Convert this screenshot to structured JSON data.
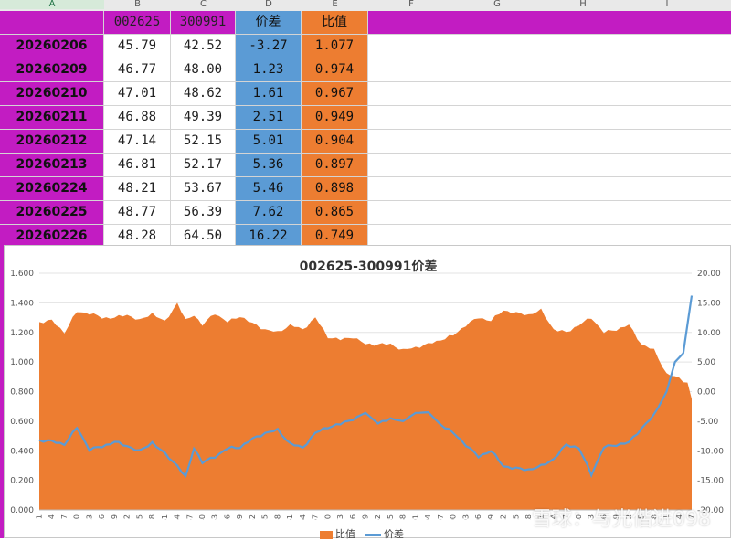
{
  "columns": [
    "A",
    "B",
    "C",
    "D",
    "E",
    "F",
    "G",
    "H",
    "I"
  ],
  "header": {
    "a": "",
    "b": "002625",
    "c": "300991",
    "d": "价差",
    "e": "比值"
  },
  "rows": [
    {
      "date": "20260206",
      "b": "45.79",
      "c": "42.52",
      "d": "-3.27",
      "e": "1.077"
    },
    {
      "date": "20260209",
      "b": "46.77",
      "c": "48.00",
      "d": "1.23",
      "e": "0.974"
    },
    {
      "date": "20260210",
      "b": "47.01",
      "c": "48.62",
      "d": "1.61",
      "e": "0.967"
    },
    {
      "date": "20260211",
      "b": "46.88",
      "c": "49.39",
      "d": "2.51",
      "e": "0.949"
    },
    {
      "date": "20260212",
      "b": "47.14",
      "c": "52.15",
      "d": "5.01",
      "e": "0.904"
    },
    {
      "date": "20260213",
      "b": "46.81",
      "c": "52.17",
      "d": "5.36",
      "e": "0.897"
    },
    {
      "date": "20260224",
      "b": "48.21",
      "c": "53.67",
      "d": "5.46",
      "e": "0.898"
    },
    {
      "date": "20260225",
      "b": "48.77",
      "c": "56.39",
      "d": "7.62",
      "e": "0.865"
    },
    {
      "date": "20260226",
      "b": "48.28",
      "c": "64.50",
      "d": "16.22",
      "e": "0.749"
    }
  ],
  "colors": {
    "magenta": "#c21cc2",
    "blue": "#5b9bd5",
    "orange": "#ed7d31"
  },
  "watermark": "雪球：与光偕进098",
  "chart_data": {
    "type": "area+line",
    "title": "002625-300991价差",
    "legend": [
      "比值",
      "价差"
    ],
    "legend_position": "bottom",
    "y_left": {
      "min": 0,
      "max": 1.6,
      "ticks": [
        "0.000",
        "0.200",
        "0.400",
        "0.600",
        "0.800",
        "1.000",
        "1.200",
        "1.400",
        "1.600"
      ]
    },
    "y_right": {
      "min": -20,
      "max": 20,
      "ticks": [
        "-20.00",
        "-15.00",
        "-10.00",
        "-5.00",
        "0.00",
        "5.00",
        "10.00",
        "15.00",
        "20.00"
      ]
    },
    "x_ticks": [
      "1",
      "4",
      "7",
      "10",
      "13",
      "16",
      "19",
      "22",
      "25",
      "28",
      "31",
      "34",
      "37",
      "40",
      "43",
      "46",
      "49",
      "52",
      "55",
      "58",
      "61",
      "64",
      "67",
      "70",
      "73",
      "76",
      "79",
      "82",
      "85",
      "88",
      "91",
      "94",
      "97",
      "100",
      "103",
      "106",
      "109",
      "112",
      "115",
      "118",
      "121",
      "124",
      "127",
      "130",
      "133",
      "136",
      "139",
      "142",
      "145",
      "148",
      "151",
      "154",
      "157"
    ],
    "ratio_anchors": [
      [
        1,
        1.27
      ],
      [
        4,
        1.28
      ],
      [
        7,
        1.2
      ],
      [
        10,
        1.34
      ],
      [
        13,
        1.33
      ],
      [
        16,
        1.3
      ],
      [
        19,
        1.3
      ],
      [
        22,
        1.32
      ],
      [
        25,
        1.28
      ],
      [
        28,
        1.33
      ],
      [
        31,
        1.27
      ],
      [
        34,
        1.4
      ],
      [
        36,
        1.28
      ],
      [
        38,
        1.32
      ],
      [
        40,
        1.25
      ],
      [
        43,
        1.33
      ],
      [
        46,
        1.27
      ],
      [
        49,
        1.31
      ],
      [
        52,
        1.26
      ],
      [
        55,
        1.22
      ],
      [
        58,
        1.2
      ],
      [
        61,
        1.25
      ],
      [
        64,
        1.22
      ],
      [
        67,
        1.3
      ],
      [
        70,
        1.17
      ],
      [
        73,
        1.15
      ],
      [
        76,
        1.17
      ],
      [
        79,
        1.12
      ],
      [
        82,
        1.12
      ],
      [
        85,
        1.12
      ],
      [
        88,
        1.08
      ],
      [
        91,
        1.1
      ],
      [
        94,
        1.12
      ],
      [
        97,
        1.15
      ],
      [
        100,
        1.18
      ],
      [
        103,
        1.25
      ],
      [
        106,
        1.3
      ],
      [
        109,
        1.28
      ],
      [
        112,
        1.35
      ],
      [
        115,
        1.33
      ],
      [
        118,
        1.32
      ],
      [
        121,
        1.35
      ],
      [
        124,
        1.22
      ],
      [
        127,
        1.2
      ],
      [
        130,
        1.25
      ],
      [
        133,
        1.3
      ],
      [
        136,
        1.2
      ],
      [
        139,
        1.22
      ],
      [
        142,
        1.25
      ],
      [
        145,
        1.12
      ],
      [
        148,
        1.08
      ],
      [
        151,
        0.92
      ],
      [
        154,
        0.89
      ],
      [
        156,
        0.86
      ],
      [
        157,
        0.75
      ]
    ],
    "spread_anchors": [
      [
        1,
        -8.2
      ],
      [
        4,
        -8.4
      ],
      [
        7,
        -8.9
      ],
      [
        10,
        -6.1
      ],
      [
        13,
        -9.8
      ],
      [
        16,
        -9.3
      ],
      [
        19,
        -8.5
      ],
      [
        22,
        -9.2
      ],
      [
        25,
        -10.1
      ],
      [
        28,
        -8.6
      ],
      [
        31,
        -10.5
      ],
      [
        34,
        -12.5
      ],
      [
        36,
        -14.5
      ],
      [
        38,
        -9.5
      ],
      [
        40,
        -12.0
      ],
      [
        43,
        -11.0
      ],
      [
        46,
        -9.6
      ],
      [
        49,
        -9.4
      ],
      [
        52,
        -8.0
      ],
      [
        55,
        -7.0
      ],
      [
        58,
        -6.5
      ],
      [
        61,
        -8.8
      ],
      [
        64,
        -9.5
      ],
      [
        67,
        -7.0
      ],
      [
        70,
        -6.0
      ],
      [
        73,
        -5.5
      ],
      [
        76,
        -4.6
      ],
      [
        79,
        -3.6
      ],
      [
        82,
        -5.4
      ],
      [
        85,
        -4.6
      ],
      [
        88,
        -5.0
      ],
      [
        91,
        -3.6
      ],
      [
        94,
        -3.5
      ],
      [
        97,
        -5.6
      ],
      [
        100,
        -7.0
      ],
      [
        103,
        -9.0
      ],
      [
        106,
        -11.0
      ],
      [
        109,
        -10.0
      ],
      [
        112,
        -12.6
      ],
      [
        115,
        -13.0
      ],
      [
        118,
        -13.2
      ],
      [
        121,
        -12.6
      ],
      [
        124,
        -11.4
      ],
      [
        127,
        -9.0
      ],
      [
        130,
        -9.5
      ],
      [
        133,
        -14.0
      ],
      [
        136,
        -9.4
      ],
      [
        139,
        -9.0
      ],
      [
        142,
        -8.6
      ],
      [
        145,
        -6.2
      ],
      [
        148,
        -4.0
      ],
      [
        151,
        0.0
      ],
      [
        153,
        5.0
      ],
      [
        155,
        6.5
      ],
      [
        157,
        16.22
      ]
    ]
  }
}
